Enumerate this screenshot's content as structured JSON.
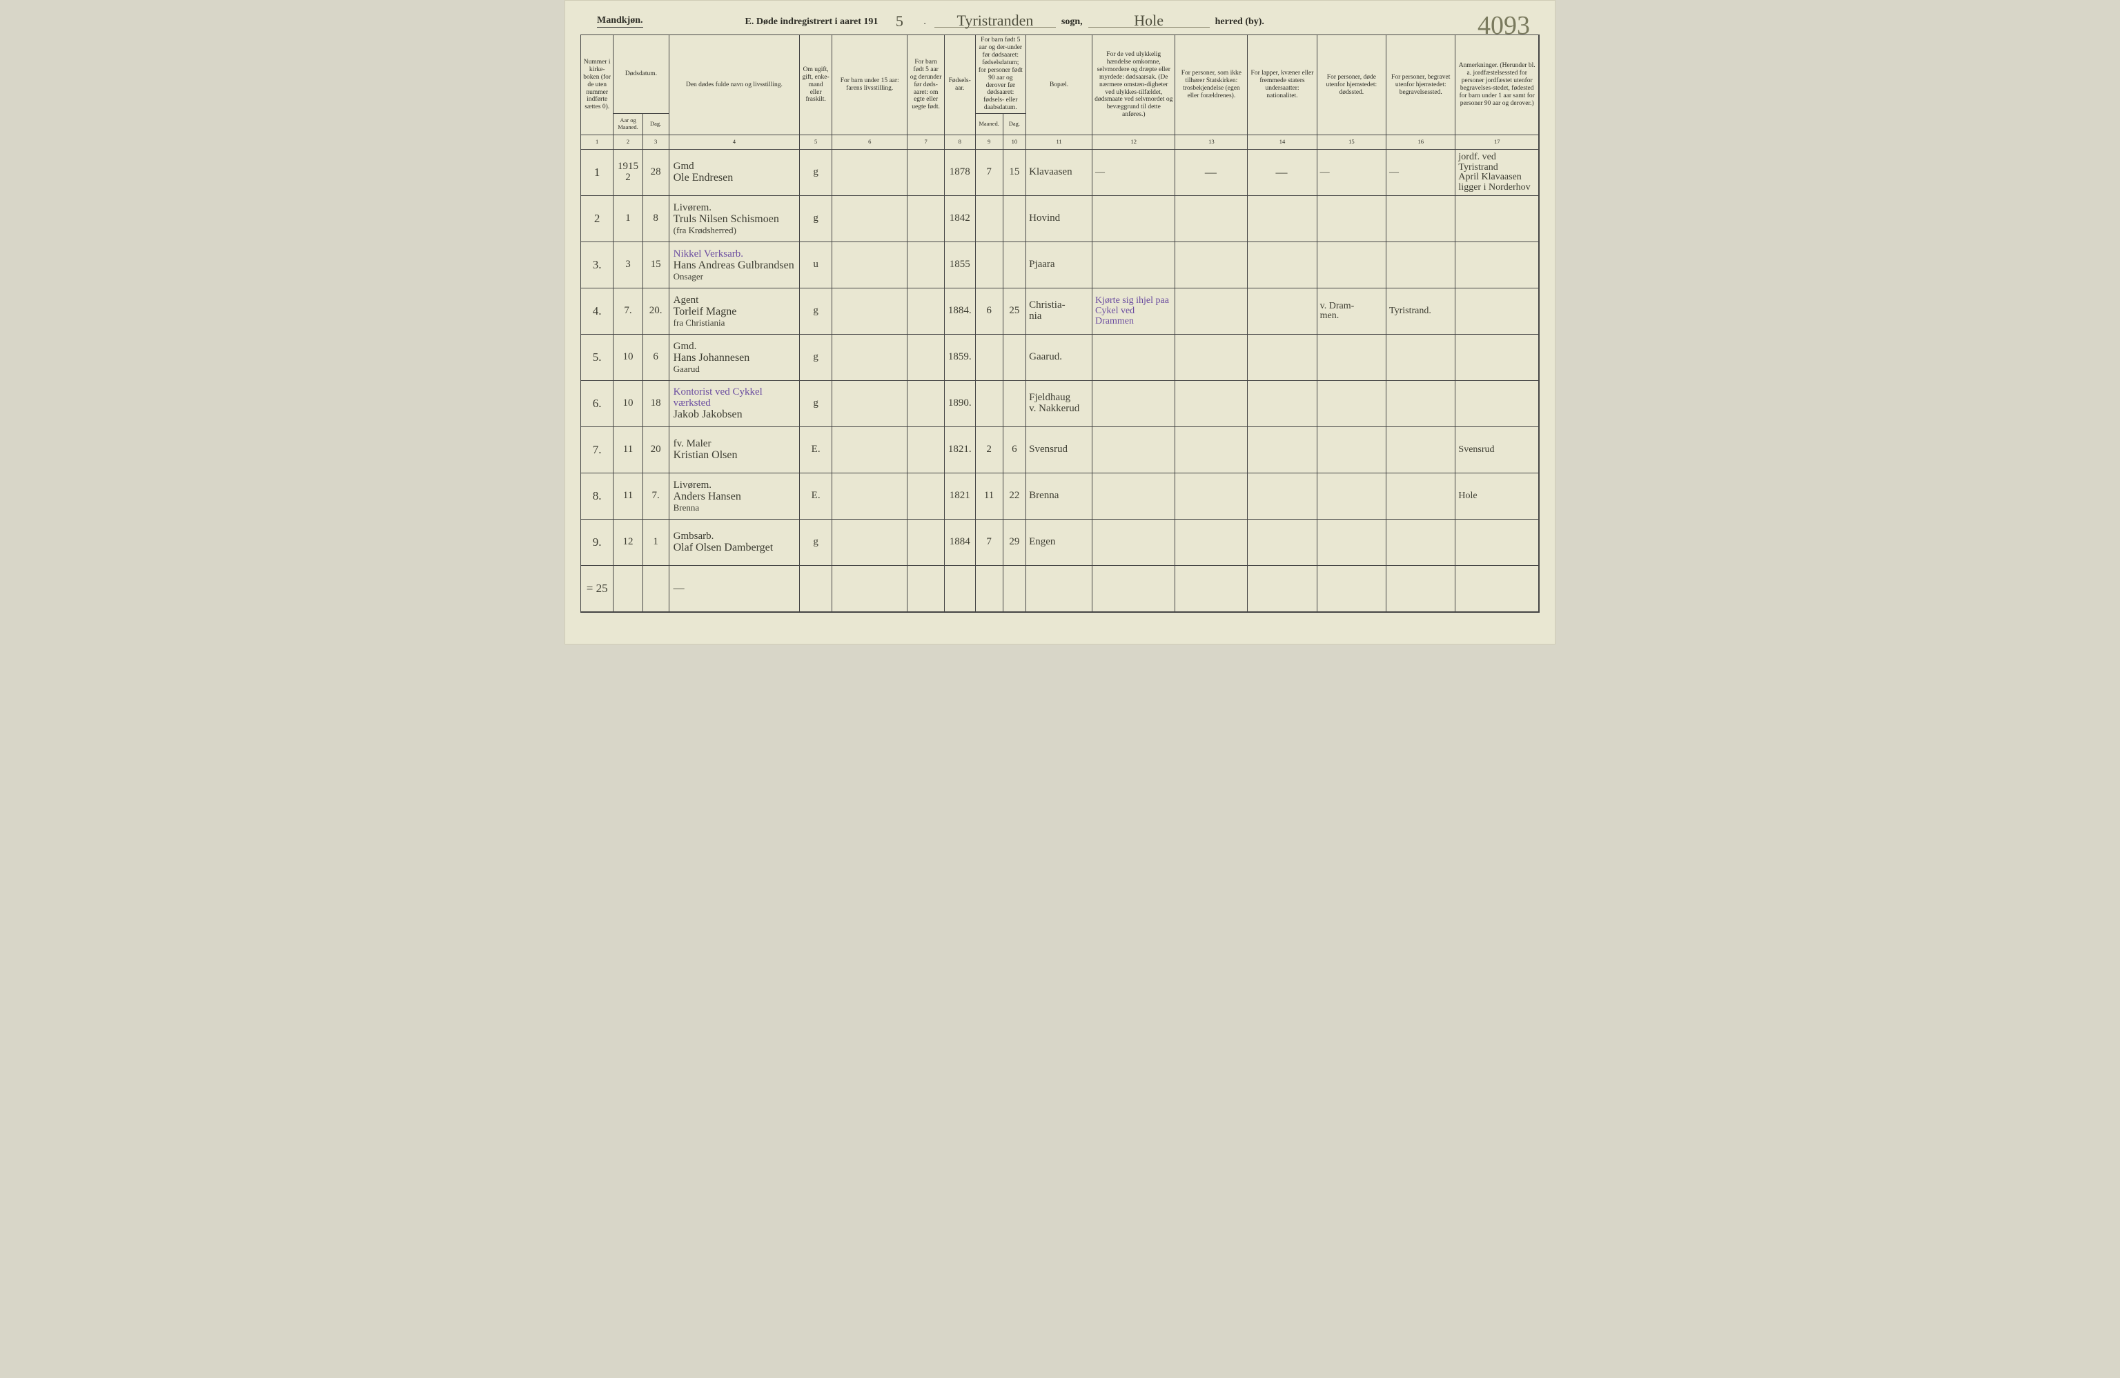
{
  "pageNumberHand": "4093",
  "title": {
    "mandkjon": "Mandkjøn.",
    "prefix": "E.   Døde indregistrert i aaret 191",
    "yearSuffixHand": "5",
    "sognLabel": "sogn,",
    "sognHand": "Tyristranden",
    "herredLabel": "herred (by).",
    "herredHand": "Hole"
  },
  "headers": {
    "c1": "Nummer i kirke-boken (for de uten nummer indførte sættes 0).",
    "c2_group": "Dødsdatum.",
    "c2a": "Aar og Maaned.",
    "c2b": "Dag.",
    "c4": "Den dødes fulde navn og livsstilling.",
    "c5": "Om ugift, gift, enke-mand eller fraskilt.",
    "c6": "For barn under 15 aar: farens livsstilling.",
    "c7": "For barn født 5 aar og derunder før døds-aaret: om egte eller uegte født.",
    "c8": "Fødsels-aar.",
    "c9_10_group": "For barn født 5 aar og der-under før dødsaaret: fødselsdatum; for personer født 90 aar og derover før dødsaaret: fødsels- eller daabsdatum.",
    "c9": "Maaned.",
    "c10": "Dag.",
    "c11": "Bopæl.",
    "c12": "For de ved ulykkelig hændelse omkomne, selvmordere og dræpte eller myrdede: dødsaarsak. (De nærmere omstæn-digheter ved ulykkes-tilfældet, dødsmaate ved selvmordet og bevæggrund til dette anføres.)",
    "c13": "For personer, som ikke tilhører Statskirken: trosbekjendelse (egen eller forældrenes).",
    "c14": "For lapper, kvæner eller fremmede staters undersaatter: nationalitet.",
    "c15": "For personer, døde utenfor hjemstedet: dødssted.",
    "c16": "For personer, begravet utenfor hjemstedet: begravelsessted.",
    "c17": "Anmerkninger. (Herunder bl. a. jordfæstelsessted for personer jordfæstet utenfor begravelses-stedet, fødested for barn under 1 aar samt for personer 90 aar og derover.)"
  },
  "colNums": [
    "1",
    "2",
    "3",
    "4",
    "5",
    "6",
    "7",
    "8",
    "9",
    "10",
    "11",
    "12",
    "13",
    "14",
    "15",
    "16",
    "17"
  ],
  "rows": [
    {
      "n": "1",
      "aar": "1915\n2",
      "dag": "28",
      "occ": "Gmd",
      "name": "Ole Endresen",
      "sub": "",
      "stat": "g",
      "far": "",
      "egte": "",
      "faar": "1878",
      "mnd": "7",
      "bdag": "15",
      "bopal": "Klavaasen",
      "c12": "—",
      "c13": "—",
      "c14": "—",
      "c15": "—",
      "c16": "—",
      "c17": "jordf. ved Tyristrand\nApril Klavaasen\nligger i Norderhov"
    },
    {
      "n": "2",
      "aar": "1",
      "dag": "8",
      "occ": "Livørem.",
      "name": "Truls Nilsen Schismoen",
      "sub": "(fra Krødsherred)",
      "stat": "g",
      "far": "",
      "egte": "",
      "faar": "1842",
      "mnd": "",
      "bdag": "",
      "bopal": "Hovind",
      "c12": "",
      "c13": "",
      "c14": "",
      "c15": "",
      "c16": "",
      "c17": ""
    },
    {
      "n": "3.",
      "aar": "3",
      "dag": "15",
      "occ": "Nikkel Verksarb.",
      "name": "Hans Andreas Gulbrandsen",
      "sub": "Onsager",
      "stat": "u",
      "far": "",
      "egte": "",
      "faar": "1855",
      "mnd": "",
      "bdag": "",
      "bopal": "Pjaara",
      "c12": "",
      "c13": "",
      "c14": "",
      "c15": "",
      "c16": "",
      "c17": ""
    },
    {
      "n": "4.",
      "aar": "7.",
      "dag": "20.",
      "occ": "Agent",
      "name": "Torleif Magne",
      "sub": "fra Christiania",
      "stat": "g",
      "far": "",
      "egte": "",
      "faar": "1884.",
      "mnd": "6",
      "bdag": "25",
      "bopal": "Christia-\nnia",
      "c12": "Kjørte sig ihjel paa Cykel ved Drammen",
      "c13": "",
      "c14": "",
      "c15": "v. Dram-\nmen.",
      "c16": "Tyristrand.",
      "c17": ""
    },
    {
      "n": "5.",
      "aar": "10",
      "dag": "6",
      "occ": "Gmd.",
      "name": "Hans Johannesen",
      "sub": "Gaarud",
      "stat": "g",
      "far": "",
      "egte": "",
      "faar": "1859.",
      "mnd": "",
      "bdag": "",
      "bopal": "Gaarud.",
      "c12": "",
      "c13": "",
      "c14": "",
      "c15": "",
      "c16": "",
      "c17": ""
    },
    {
      "n": "6.",
      "aar": "10",
      "dag": "18",
      "occ": "Kontorist ved Cykkel værksted",
      "name": "Jakob Jakobsen",
      "sub": "",
      "stat": "g",
      "far": "",
      "egte": "",
      "faar": "1890.",
      "mnd": "",
      "bdag": "",
      "bopal": "Fjeldhaug\nv. Nakkerud",
      "c12": "",
      "c13": "",
      "c14": "",
      "c15": "",
      "c16": "",
      "c17": ""
    },
    {
      "n": "7.",
      "aar": "11",
      "dag": "20",
      "occ": "fv. Maler",
      "name": "Kristian Olsen",
      "sub": "",
      "stat": "E.",
      "far": "",
      "egte": "",
      "faar": "1821.",
      "mnd": "2",
      "bdag": "6",
      "bopal": "Svensrud",
      "c12": "",
      "c13": "",
      "c14": "",
      "c15": "",
      "c16": "",
      "c17": "Svensrud"
    },
    {
      "n": "8.",
      "aar": "11",
      "dag": "7.",
      "occ": "Livørem.",
      "name": "Anders Hansen",
      "sub": "Brenna",
      "stat": "E.",
      "far": "",
      "egte": "",
      "faar": "1821",
      "mnd": "11",
      "bdag": "22",
      "bopal": "Brenna",
      "c12": "",
      "c13": "",
      "c14": "",
      "c15": "",
      "c16": "",
      "c17": "Hole"
    },
    {
      "n": "9.",
      "aar": "12",
      "dag": "1",
      "occ": "Gmbsarb.",
      "name": "Olaf Olsen Damberget",
      "sub": "",
      "stat": "g",
      "far": "",
      "egte": "",
      "faar": "1884",
      "mnd": "7",
      "bdag": "29",
      "bopal": "Engen",
      "c12": "",
      "c13": "",
      "c14": "",
      "c15": "",
      "c16": "",
      "c17": ""
    },
    {
      "n": "= 25",
      "aar": "",
      "dag": "",
      "occ": "",
      "name": "—",
      "sub": "",
      "stat": "",
      "far": "",
      "egte": "",
      "faar": "",
      "mnd": "",
      "bdag": "",
      "bopal": "",
      "c12": "",
      "c13": "",
      "c14": "",
      "c15": "",
      "c16": "",
      "c17": ""
    }
  ]
}
